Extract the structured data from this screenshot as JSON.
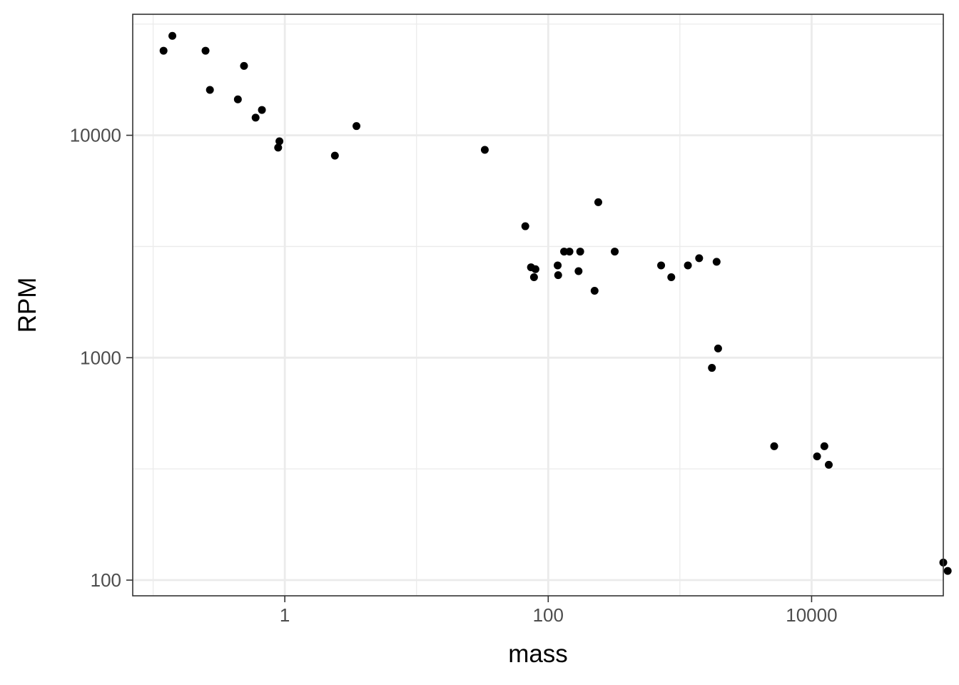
{
  "chart_data": {
    "type": "scatter",
    "title": "",
    "xlabel": "mass",
    "ylabel": "RPM",
    "x_scale": "log10",
    "y_scale": "log10",
    "xlim": [
      0.07,
      100000
    ],
    "ylim": [
      85,
      35000
    ],
    "x_ticks": [
      {
        "value": 1,
        "label": "1"
      },
      {
        "value": 100,
        "label": "100"
      },
      {
        "value": 10000,
        "label": "10000"
      }
    ],
    "y_ticks": [
      {
        "value": 100,
        "label": "100"
      },
      {
        "value": 1000,
        "label": "1000"
      },
      {
        "value": 10000,
        "label": "10000"
      }
    ],
    "grid": true,
    "legend": "none",
    "colors": {
      "point": "#000000",
      "grid": "#ebebeb",
      "panel_border": "#333333",
      "tick_label": "#4d4d4d"
    },
    "points": [
      {
        "x": 0.12,
        "y": 24000
      },
      {
        "x": 0.14,
        "y": 28000
      },
      {
        "x": 0.25,
        "y": 24000
      },
      {
        "x": 0.27,
        "y": 16000
      },
      {
        "x": 0.44,
        "y": 14500
      },
      {
        "x": 0.49,
        "y": 20500
      },
      {
        "x": 0.6,
        "y": 12000
      },
      {
        "x": 0.67,
        "y": 13000
      },
      {
        "x": 0.89,
        "y": 8800
      },
      {
        "x": 0.91,
        "y": 9400
      },
      {
        "x": 2.4,
        "y": 8100
      },
      {
        "x": 3.5,
        "y": 11000
      },
      {
        "x": 33,
        "y": 8600
      },
      {
        "x": 67,
        "y": 3900
      },
      {
        "x": 74,
        "y": 2550
      },
      {
        "x": 78,
        "y": 2300
      },
      {
        "x": 80,
        "y": 2500
      },
      {
        "x": 118,
        "y": 2600
      },
      {
        "x": 119,
        "y": 2350
      },
      {
        "x": 132,
        "y": 3000
      },
      {
        "x": 145,
        "y": 3000
      },
      {
        "x": 170,
        "y": 2450
      },
      {
        "x": 175,
        "y": 3000
      },
      {
        "x": 225,
        "y": 2000
      },
      {
        "x": 240,
        "y": 5000
      },
      {
        "x": 320,
        "y": 3000
      },
      {
        "x": 720,
        "y": 2600
      },
      {
        "x": 860,
        "y": 2300
      },
      {
        "x": 1150,
        "y": 2600
      },
      {
        "x": 1400,
        "y": 2800
      },
      {
        "x": 1750,
        "y": 900
      },
      {
        "x": 1900,
        "y": 2700
      },
      {
        "x": 1950,
        "y": 1100
      },
      {
        "x": 5200,
        "y": 400
      },
      {
        "x": 11000,
        "y": 360
      },
      {
        "x": 12500,
        "y": 400
      },
      {
        "x": 13500,
        "y": 330
      },
      {
        "x": 100000,
        "y": 120
      },
      {
        "x": 108000,
        "y": 110
      }
    ]
  }
}
